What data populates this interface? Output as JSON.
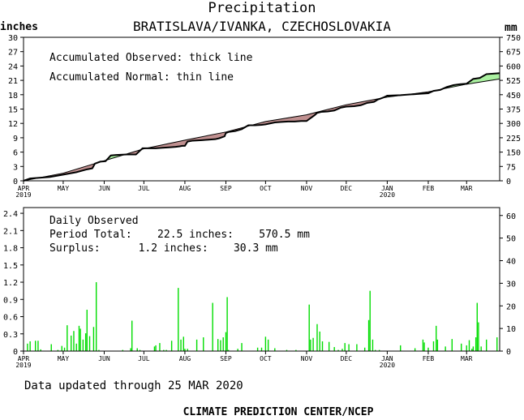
{
  "header": {
    "title": "Precipitation",
    "station": "BRATISLAVA/IVANKA, CZECHOSLOVAKIA",
    "left_unit": "inches",
    "right_unit": "mm"
  },
  "footer": {
    "updated": "Data updated through 25 MAR 2020",
    "credit": "CLIMATE PREDICTION CENTER/NCEP"
  },
  "colors": {
    "surplus": "#aaf0a0",
    "deficit": "#c09090",
    "bar": "#00dd00",
    "line": "#000000"
  },
  "chart_data": [
    {
      "type": "area",
      "annotations": [
        "Accumulated Observed: thick line",
        "Accumulated Normal: thin line"
      ],
      "ylim_inches": [
        0,
        30
      ],
      "yticks_inches": [
        "0",
        "3",
        "6",
        "9",
        "12",
        "15",
        "18",
        "21",
        "24",
        "27",
        "30"
      ],
      "ylim_mm": [
        0,
        750
      ],
      "yticks_mm": [
        "0",
        "75",
        "150",
        "225",
        "300",
        "375",
        "450",
        "525",
        "600",
        "675",
        "750"
      ],
      "xlim_days": [
        0,
        360
      ],
      "month_ticks": [
        {
          "day": 0,
          "label": "APR",
          "sub": "2019"
        },
        {
          "day": 30,
          "label": "MAY",
          "sub": ""
        },
        {
          "day": 61,
          "label": "JUN",
          "sub": ""
        },
        {
          "day": 91,
          "label": "JUL",
          "sub": ""
        },
        {
          "day": 122,
          "label": "AUG",
          "sub": ""
        },
        {
          "day": 153,
          "label": "SEP",
          "sub": ""
        },
        {
          "day": 183,
          "label": "OCT",
          "sub": ""
        },
        {
          "day": 214,
          "label": "NOV",
          "sub": ""
        },
        {
          "day": 244,
          "label": "DEC",
          "sub": ""
        },
        {
          "day": 275,
          "label": "JAN",
          "sub": "2020"
        },
        {
          "day": 306,
          "label": "FEB",
          "sub": ""
        },
        {
          "day": 335,
          "label": "MAR",
          "sub": ""
        }
      ],
      "series": [
        {
          "name": "Accumulated Normal",
          "x": [
            0,
            30,
            61,
            91,
            122,
            153,
            183,
            214,
            244,
            275,
            306,
            335,
            360
          ],
          "y": [
            0,
            1.6,
            4.2,
            6.7,
            8.5,
            10.2,
            12.4,
            13.8,
            15.9,
            17.5,
            18.6,
            20.2,
            21.3
          ]
        },
        {
          "name": "Accumulated Observed",
          "x": [
            0,
            5,
            10,
            20,
            30,
            40,
            48,
            52,
            54,
            58,
            62,
            66,
            70,
            78,
            85,
            90,
            95,
            100,
            105,
            110,
            115,
            118,
            120,
            122,
            124,
            128,
            135,
            140,
            145,
            148,
            150,
            152,
            153,
            155,
            160,
            165,
            170,
            175,
            180,
            183,
            190,
            195,
            200,
            205,
            210,
            214,
            220,
            222,
            225,
            230,
            235,
            240,
            244,
            250,
            255,
            260,
            265,
            268,
            270,
            272,
            275,
            285,
            290,
            295,
            300,
            306,
            310,
            315,
            320,
            325,
            330,
            335,
            340,
            345,
            350,
            355,
            360
          ],
          "y": [
            0,
            0.5,
            0.6,
            0.8,
            1.3,
            1.8,
            2.4,
            2.6,
            3.6,
            4.0,
            4.1,
            5.3,
            5.4,
            5.5,
            5.5,
            6.8,
            6.8,
            6.8,
            6.9,
            7.0,
            7.1,
            7.2,
            7.3,
            7.3,
            8.2,
            8.4,
            8.5,
            8.6,
            8.7,
            8.9,
            9.1,
            9.3,
            10.0,
            10.2,
            10.4,
            10.8,
            11.6,
            11.6,
            11.7,
            11.8,
            12.2,
            12.3,
            12.4,
            12.4,
            12.5,
            12.5,
            13.7,
            14.2,
            14.4,
            14.5,
            14.7,
            15.3,
            15.5,
            15.6,
            15.8,
            16.3,
            16.5,
            17.0,
            17.2,
            17.4,
            17.8,
            17.9,
            18.0,
            18.1,
            18.2,
            18.3,
            18.8,
            19.0,
            19.6,
            20.0,
            20.2,
            20.3,
            21.3,
            21.5,
            22.3,
            22.4,
            22.5
          ]
        }
      ]
    },
    {
      "type": "bar",
      "annotations": [
        "Daily Observed",
        "Period Total:    22.5 inches:    570.5 mm",
        "Surplus:      1.2 inches:    30.3 mm"
      ],
      "ylim_inches": [
        0,
        2.5
      ],
      "yticks_inches": [
        "0",
        "0.3",
        "0.6",
        "0.9",
        "1.2",
        "1.5",
        "1.8",
        "2.1",
        "2.4"
      ],
      "ylim_mm": [
        0,
        63.5
      ],
      "yticks_mm": [
        "0",
        "10",
        "20",
        "30",
        "40",
        "50",
        "60"
      ],
      "xlim_days": [
        0,
        360
      ],
      "daily": [
        {
          "day": 3,
          "value": 0.13
        },
        {
          "day": 5,
          "value": 0.17
        },
        {
          "day": 9,
          "value": 0.18
        },
        {
          "day": 11,
          "value": 0.18
        },
        {
          "day": 13,
          "value": 0.03
        },
        {
          "day": 21,
          "value": 0.12
        },
        {
          "day": 26,
          "value": 0.02
        },
        {
          "day": 29,
          "value": 0.09
        },
        {
          "day": 31,
          "value": 0.06
        },
        {
          "day": 33,
          "value": 0.45
        },
        {
          "day": 36,
          "value": 0.27
        },
        {
          "day": 38,
          "value": 0.35
        },
        {
          "day": 40,
          "value": 0.13
        },
        {
          "day": 42,
          "value": 0.44
        },
        {
          "day": 43,
          "value": 0.39
        },
        {
          "day": 45,
          "value": 0.2
        },
        {
          "day": 47,
          "value": 0.31
        },
        {
          "day": 48,
          "value": 0.72
        },
        {
          "day": 50,
          "value": 0.26
        },
        {
          "day": 53,
          "value": 0.42
        },
        {
          "day": 55,
          "value": 1.2
        },
        {
          "day": 57,
          "value": 0.02
        },
        {
          "day": 75,
          "value": 0.02
        },
        {
          "day": 81,
          "value": 0.05
        },
        {
          "day": 82,
          "value": 0.53
        },
        {
          "day": 86,
          "value": 0.05
        },
        {
          "day": 88,
          "value": 0.02
        },
        {
          "day": 99,
          "value": 0.08
        },
        {
          "day": 100,
          "value": 0.1
        },
        {
          "day": 103,
          "value": 0.14
        },
        {
          "day": 106,
          "value": 0.02
        },
        {
          "day": 108,
          "value": 0.02
        },
        {
          "day": 112,
          "value": 0.18
        },
        {
          "day": 117,
          "value": 1.1
        },
        {
          "day": 119,
          "value": 0.2
        },
        {
          "day": 121,
          "value": 0.25
        },
        {
          "day": 122,
          "value": 0.04
        },
        {
          "day": 124,
          "value": 0.04
        },
        {
          "day": 131,
          "value": 0.2
        },
        {
          "day": 136,
          "value": 0.24
        },
        {
          "day": 143,
          "value": 0.84
        },
        {
          "day": 147,
          "value": 0.21
        },
        {
          "day": 149,
          "value": 0.19
        },
        {
          "day": 151,
          "value": 0.24
        },
        {
          "day": 153,
          "value": 0.33
        },
        {
          "day": 154,
          "value": 0.94
        },
        {
          "day": 155,
          "value": 0.02
        },
        {
          "day": 162,
          "value": 0.04
        },
        {
          "day": 165,
          "value": 0.14
        },
        {
          "day": 177,
          "value": 0.06
        },
        {
          "day": 180,
          "value": 0.06
        },
        {
          "day": 183,
          "value": 0.25
        },
        {
          "day": 185,
          "value": 0.2
        },
        {
          "day": 190,
          "value": 0.05
        },
        {
          "day": 199,
          "value": 0.02
        },
        {
          "day": 206,
          "value": 0.02
        },
        {
          "day": 216,
          "value": 0.81
        },
        {
          "day": 217,
          "value": 0.2
        },
        {
          "day": 219,
          "value": 0.23
        },
        {
          "day": 222,
          "value": 0.47
        },
        {
          "day": 224,
          "value": 0.34
        },
        {
          "day": 226,
          "value": 0.17
        },
        {
          "day": 231,
          "value": 0.16
        },
        {
          "day": 235,
          "value": 0.07
        },
        {
          "day": 238,
          "value": 0.02
        },
        {
          "day": 241,
          "value": 0.04
        },
        {
          "day": 243,
          "value": 0.14
        },
        {
          "day": 246,
          "value": 0.12
        },
        {
          "day": 252,
          "value": 0.12
        },
        {
          "day": 258,
          "value": 0.06
        },
        {
          "day": 261,
          "value": 0.54
        },
        {
          "day": 262,
          "value": 1.05
        },
        {
          "day": 264,
          "value": 0.2
        },
        {
          "day": 266,
          "value": 0.02
        },
        {
          "day": 269,
          "value": 0.02
        },
        {
          "day": 285,
          "value": 0.1
        },
        {
          "day": 296,
          "value": 0.05
        },
        {
          "day": 302,
          "value": 0.2
        },
        {
          "day": 303,
          "value": 0.15
        },
        {
          "day": 306,
          "value": 0.06
        },
        {
          "day": 310,
          "value": 0.17
        },
        {
          "day": 312,
          "value": 0.44
        },
        {
          "day": 313,
          "value": 0.2
        },
        {
          "day": 319,
          "value": 0.08
        },
        {
          "day": 324,
          "value": 0.21
        },
        {
          "day": 331,
          "value": 0.13
        },
        {
          "day": 335,
          "value": 0.1
        },
        {
          "day": 337,
          "value": 0.19
        },
        {
          "day": 339,
          "value": 0.04
        },
        {
          "day": 340,
          "value": 0.08
        },
        {
          "day": 342,
          "value": 0.24
        },
        {
          "day": 343,
          "value": 0.84
        },
        {
          "day": 344,
          "value": 0.5
        },
        {
          "day": 346,
          "value": 0.08
        },
        {
          "day": 350,
          "value": 0.2
        },
        {
          "day": 358,
          "value": 0.24
        }
      ]
    }
  ]
}
